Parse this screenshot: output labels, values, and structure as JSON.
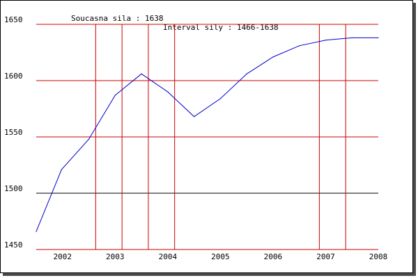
{
  "header": {
    "current_label": "Soucasna sila : 1638",
    "interval_label": "Interval sily : 1466-1638"
  },
  "colors": {
    "line": "#0000cc",
    "vertical_grid": "#cc0000",
    "horizontal_grid": "#cc0000",
    "baseline": "#000000",
    "background": "#ffffff"
  },
  "chart_data": {
    "type": "line",
    "title": "",
    "xlabel": "",
    "ylabel": "",
    "xlim": [
      2001.5,
      2008.0
    ],
    "ylim": [
      1450,
      1650
    ],
    "yticks": [
      1450,
      1500,
      1550,
      1600,
      1650
    ],
    "xtick_labels": [
      {
        "label": "2002",
        "x": 2002.0
      },
      {
        "label": "2003",
        "x": 2003.0
      },
      {
        "label": "2004",
        "x": 2004.0
      },
      {
        "label": "2005",
        "x": 2005.0
      },
      {
        "label": "2006",
        "x": 2006.0
      },
      {
        "label": "2007",
        "x": 2007.0
      },
      {
        "label": "2008",
        "x": 2008.0
      }
    ],
    "vertical_markers": [
      2002.63,
      2003.13,
      2003.63,
      2004.13,
      2006.88,
      2007.38
    ],
    "grid_y_values": [
      1550,
      1600,
      1650
    ],
    "baseline_y": 1500,
    "series": [
      {
        "x": [
          2001.5,
          2001.98,
          2002.5,
          2003.0,
          2003.5,
          2004.0,
          2004.5,
          2005.0,
          2005.5,
          2006.0,
          2006.5,
          2007.0,
          2007.5,
          2008.0
        ],
        "y": [
          1466,
          1521,
          1548,
          1587,
          1606,
          1590,
          1568,
          1584,
          1606,
          1621,
          1631,
          1636,
          1638,
          1638
        ]
      }
    ]
  }
}
